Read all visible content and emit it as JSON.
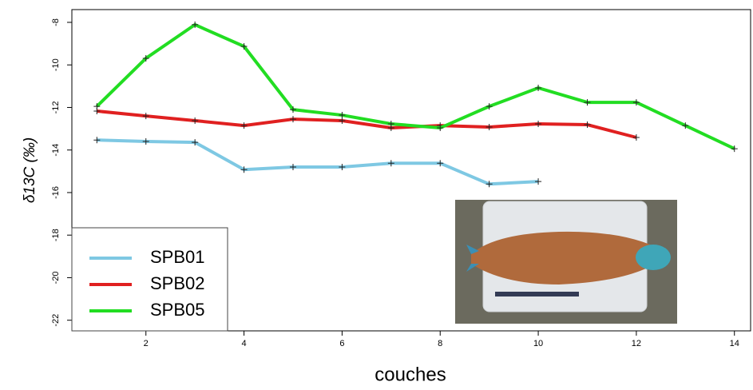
{
  "chart_data": {
    "type": "line",
    "x_label": "couches",
    "y_label": "δ13C (‰)",
    "x": [
      1,
      2,
      3,
      4,
      5,
      6,
      7,
      8,
      9,
      10,
      11,
      12,
      13,
      14
    ],
    "series": [
      {
        "name": "SPB01",
        "color": "#7ec8e3",
        "values": [
          -13.53,
          -13.6,
          -13.64,
          -14.92,
          -14.8,
          -14.8,
          -14.62,
          -14.62,
          -15.6,
          -15.48,
          null,
          null,
          null,
          null
        ]
      },
      {
        "name": "SPB02",
        "color": "#e02020",
        "values": [
          -12.17,
          -12.4,
          -12.62,
          -12.85,
          -12.55,
          -12.62,
          -12.96,
          -12.85,
          -12.92,
          -12.77,
          -12.81,
          -13.41,
          null,
          null
        ]
      },
      {
        "name": "SPB05",
        "color": "#22dd22",
        "values": [
          -11.95,
          -9.69,
          -8.11,
          -9.13,
          -12.1,
          -12.36,
          -12.77,
          -12.96,
          -11.95,
          -11.08,
          -11.76,
          -11.76,
          -12.85,
          -13.94
        ]
      }
    ],
    "xlim": [
      0.49,
      14.33
    ],
    "xticks": [
      2,
      4,
      6,
      8,
      10,
      12,
      14
    ],
    "ylim": [
      -22.5,
      -7.4
    ],
    "yticks": [
      -22,
      -20,
      -18,
      -16,
      -14,
      -12,
      -10,
      -8
    ],
    "legend": "bottom-left"
  }
}
